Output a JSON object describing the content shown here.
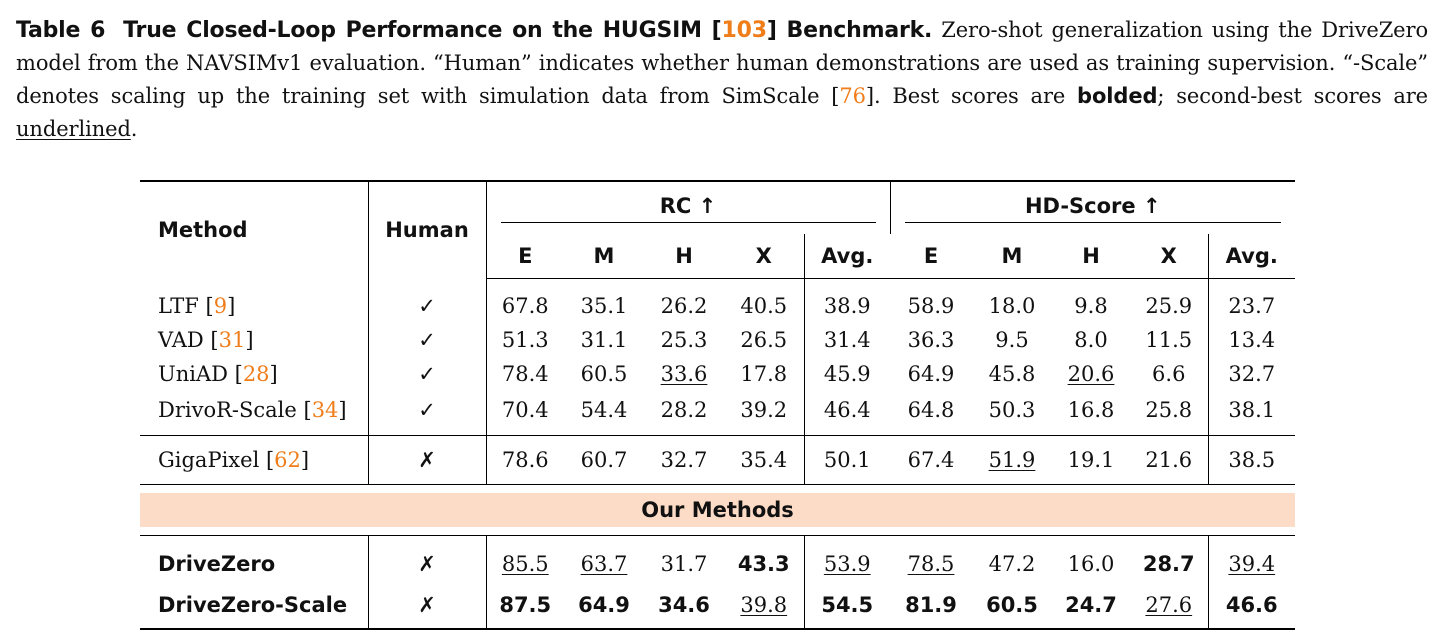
{
  "caption": {
    "label": "Table 6",
    "title_pre": "True Closed-Loop Performance on the HUGSIM [",
    "title_cite": "103",
    "title_post": "] Benchmark.",
    "text1": " Zero-shot generalization using the DriveZero model from the NAVSIMv1 evaluation. “Human” indicates whether human demonstrations are used as training supervision. “-Scale” denotes scaling up the training set with simulation data from SimScale [",
    "cite2": "76",
    "text2": "]. Best scores are ",
    "bolded": "bolded",
    "text3": "; second-best scores are ",
    "underlined": "underlined",
    "text4": "."
  },
  "table": {
    "col_method": "Method",
    "col_human": "Human",
    "group_rc": "RC ↑",
    "group_hd": "HD-Score ↑",
    "sub_cols": [
      "E",
      "M",
      "H",
      "X",
      "Avg."
    ],
    "rows": [
      {
        "name": "LTF [",
        "cite": "9",
        "close": "]",
        "human": "✓",
        "rc": [
          "67.8",
          "35.1",
          "26.2",
          "40.5",
          "38.9"
        ],
        "hd": [
          "58.9",
          "18.0",
          "9.8",
          "25.9",
          "23.7"
        ]
      },
      {
        "name": "VAD [",
        "cite": "31",
        "close": "]",
        "human": "✓",
        "rc": [
          "51.3",
          "31.1",
          "25.3",
          "26.5",
          "31.4"
        ],
        "hd": [
          "36.3",
          "9.5",
          "8.0",
          "11.5",
          "13.4"
        ]
      },
      {
        "name": "UniAD [",
        "cite": "28",
        "close": "]",
        "human": "✓",
        "rc": [
          "78.4",
          "60.5",
          "33.6",
          "17.8",
          "45.9"
        ],
        "hd": [
          "64.9",
          "45.8",
          "20.6",
          "6.6",
          "32.7"
        ]
      },
      {
        "name": "DrivoR-Scale [",
        "cite": "34",
        "close": "]",
        "human": "✓",
        "rc": [
          "70.4",
          "54.4",
          "28.2",
          "39.2",
          "46.4"
        ],
        "hd": [
          "64.8",
          "50.3",
          "16.8",
          "25.8",
          "38.1"
        ]
      },
      {
        "name": "GigaPixel [",
        "cite": "62",
        "close": "]",
        "human": "✗",
        "rc": [
          "78.6",
          "60.7",
          "32.7",
          "35.4",
          "50.1"
        ],
        "hd": [
          "67.4",
          "51.9",
          "19.1",
          "21.6",
          "38.5"
        ]
      }
    ],
    "ours_label": "Our Methods",
    "ours_rows": [
      {
        "name": "DriveZero",
        "human": "✗",
        "rc": [
          "85.5",
          "63.7",
          "31.7",
          "43.3",
          "53.9"
        ],
        "hd": [
          "78.5",
          "47.2",
          "16.0",
          "28.7",
          "39.4"
        ]
      },
      {
        "name": "DriveZero-Scale",
        "human": "✗",
        "rc": [
          "87.5",
          "64.9",
          "34.6",
          "39.8",
          "54.5"
        ],
        "hd": [
          "81.9",
          "60.5",
          "24.7",
          "27.6",
          "46.6"
        ]
      }
    ]
  }
}
